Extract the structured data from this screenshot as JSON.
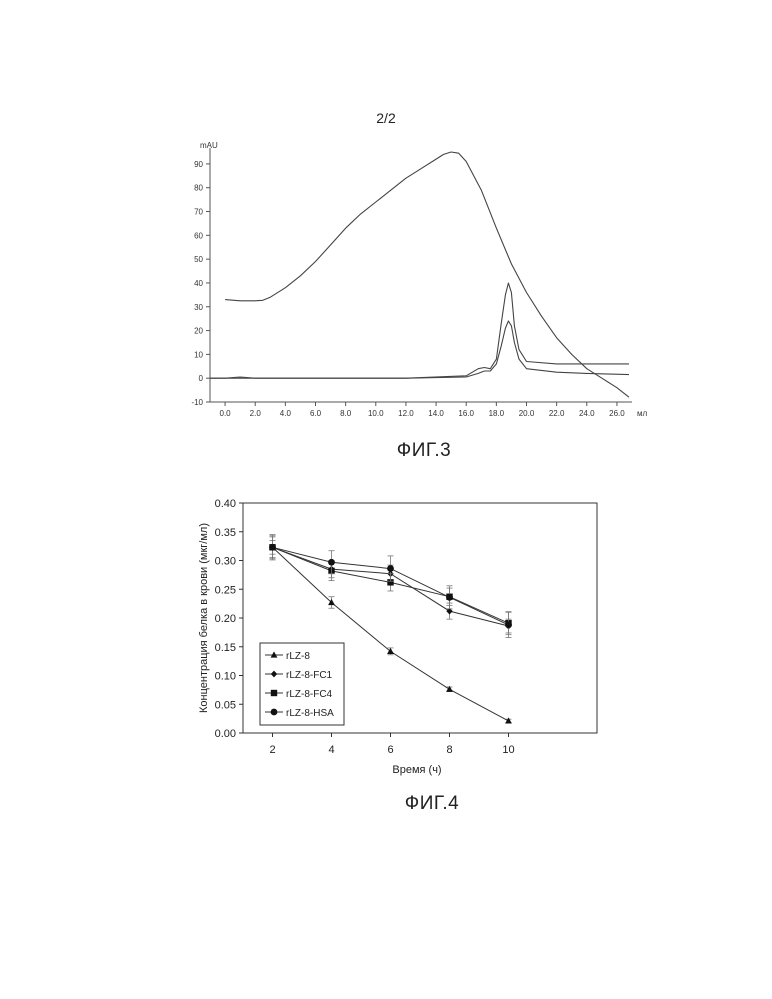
{
  "page_number": "2/2",
  "fig3": {
    "caption": "ФИГ.3",
    "y_unit": "mAU",
    "x_unit": "мл",
    "x_ticks": [
      "0.0",
      "2.0",
      "4.0",
      "6.0",
      "8.0",
      "10.0",
      "12.0",
      "14.0",
      "16.0",
      "18.0",
      "20.0",
      "22.0",
      "24.0",
      "26.0"
    ],
    "y_ticks": [
      "90",
      "80",
      "70",
      "60",
      "50",
      "40",
      "30",
      "20",
      "10",
      "0",
      "-10"
    ]
  },
  "fig4": {
    "caption": "ФИГ.4"
  },
  "chart_data": [
    {
      "type": "line",
      "xlabel": "мл",
      "ylabel": "mAU",
      "xlim": [
        -1,
        27
      ],
      "ylim": [
        -10,
        95
      ],
      "grid": false,
      "series": [
        {
          "x": [
            0,
            1,
            2,
            2.5,
            3,
            4,
            5,
            6,
            7,
            8,
            9,
            10,
            11,
            12,
            13,
            14,
            14.5,
            15,
            15.5,
            16,
            17,
            18,
            19,
            20,
            21,
            22,
            23,
            24,
            25,
            26,
            26.8
          ],
          "y": [
            33,
            32.5,
            32.5,
            32.7,
            34,
            38,
            43,
            49,
            56,
            63,
            69,
            74,
            79,
            84,
            88,
            92,
            94,
            95,
            94.5,
            91,
            79,
            63,
            48,
            36,
            26,
            17,
            10,
            4,
            0,
            -4,
            -8
          ]
        },
        {
          "x": [
            -1,
            0,
            1,
            2,
            4,
            8,
            12,
            16,
            16.8,
            17.2,
            17.6,
            18.0,
            18.3,
            18.6,
            18.8,
            19.0,
            19.2,
            19.5,
            20,
            22,
            24,
            26.8
          ],
          "y": [
            0,
            0,
            0.5,
            0,
            0,
            0,
            0,
            1,
            4,
            4.5,
            4,
            8,
            22,
            35,
            40,
            36,
            22,
            12,
            7,
            6,
            6,
            6
          ]
        },
        {
          "x": [
            -1,
            0,
            1,
            2,
            4,
            8,
            12,
            16,
            16.8,
            17.2,
            17.6,
            18.0,
            18.3,
            18.6,
            18.8,
            19.0,
            19.2,
            19.5,
            20,
            22,
            24,
            26.8
          ],
          "y": [
            0,
            0,
            0,
            0,
            0,
            0,
            0,
            0.5,
            2,
            3,
            3,
            6,
            13,
            21,
            24,
            22,
            15,
            8,
            4,
            2.5,
            2,
            1.5
          ]
        }
      ]
    },
    {
      "type": "line",
      "xlabel": "Время (ч)",
      "ylabel": "Концентрация белка в крови (мкг/мл)",
      "x": [
        2,
        4,
        6,
        8,
        10
      ],
      "xlim": [
        1,
        13
      ],
      "ylim": [
        0,
        0.4
      ],
      "y_ticks": [
        "0.00",
        "0.05",
        "0.10",
        "0.15",
        "0.20",
        "0.25",
        "0.30",
        "0.35",
        "0.40"
      ],
      "x_ticks": [
        "2",
        "4",
        "6",
        "8",
        "10"
      ],
      "grid": false,
      "legend": "bottom-left",
      "series": [
        {
          "name": "rLZ-8",
          "marker": "triangle",
          "values": [
            0.323,
            0.227,
            0.142,
            0.076,
            0.021
          ],
          "err": [
            0.012,
            0.01,
            0.006,
            0.004,
            0.003
          ]
        },
        {
          "name": "rLZ-8-FC1",
          "marker": "diamond",
          "values": [
            0.323,
            0.285,
            0.277,
            0.212,
            0.186
          ],
          "err": [
            0.018,
            0.015,
            0.015,
            0.014,
            0.012
          ]
        },
        {
          "name": "rLZ-8-FC4",
          "marker": "square",
          "values": [
            0.323,
            0.282,
            0.262,
            0.237,
            0.191
          ],
          "err": [
            0.02,
            0.017,
            0.015,
            0.015,
            0.02
          ]
        },
        {
          "name": "rLZ-8-HSA",
          "marker": "circle",
          "values": [
            0.323,
            0.297,
            0.286,
            0.236,
            0.188
          ],
          "err": [
            0.022,
            0.02,
            0.022,
            0.02,
            0.022
          ]
        }
      ]
    }
  ]
}
